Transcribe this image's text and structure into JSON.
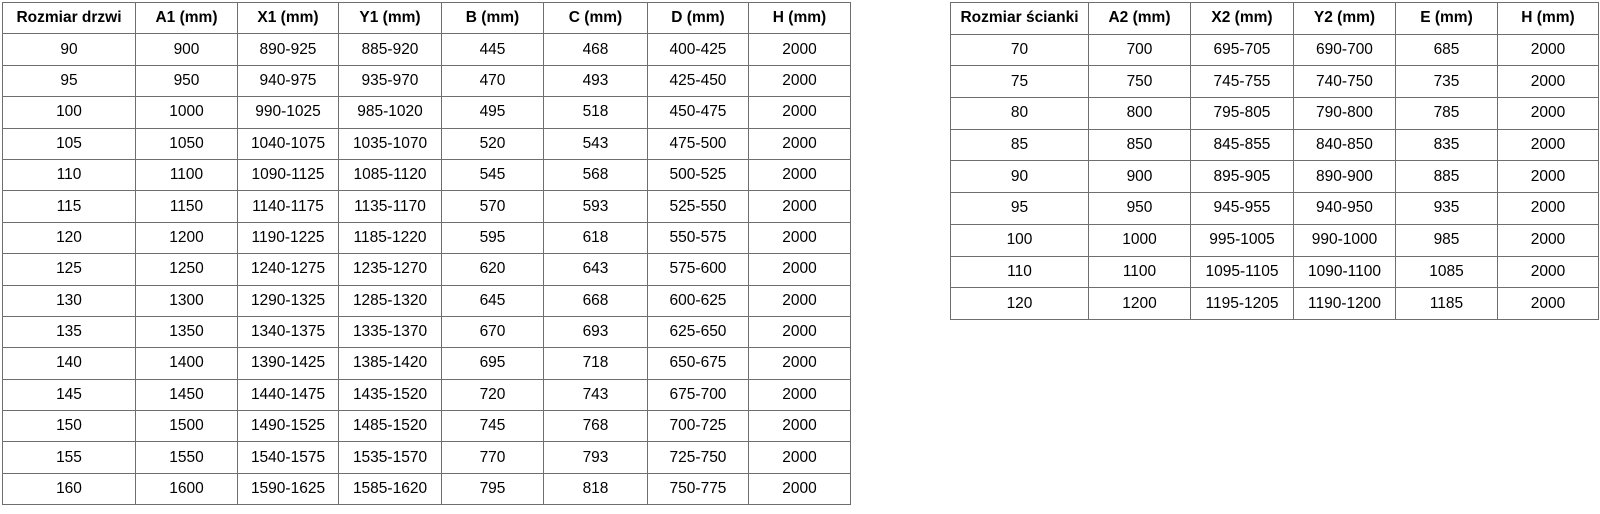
{
  "colors": {
    "border": "#6e6e6e",
    "text": "#000000",
    "background": "#ffffff"
  },
  "door_table": {
    "title": "Rozmiar drzwi",
    "headers": [
      "Rozmiar drzwi",
      "A1 (mm)",
      "X1 (mm)",
      "Y1 (mm)",
      "B (mm)",
      "C (mm)",
      "D (mm)",
      "H (mm)"
    ],
    "rows": [
      [
        "90",
        "900",
        "890-925",
        "885-920",
        "445",
        "468",
        "400-425",
        "2000"
      ],
      [
        "95",
        "950",
        "940-975",
        "935-970",
        "470",
        "493",
        "425-450",
        "2000"
      ],
      [
        "100",
        "1000",
        "990-1025",
        "985-1020",
        "495",
        "518",
        "450-475",
        "2000"
      ],
      [
        "105",
        "1050",
        "1040-1075",
        "1035-1070",
        "520",
        "543",
        "475-500",
        "2000"
      ],
      [
        "110",
        "1100",
        "1090-1125",
        "1085-1120",
        "545",
        "568",
        "500-525",
        "2000"
      ],
      [
        "115",
        "1150",
        "1140-1175",
        "1135-1170",
        "570",
        "593",
        "525-550",
        "2000"
      ],
      [
        "120",
        "1200",
        "1190-1225",
        "1185-1220",
        "595",
        "618",
        "550-575",
        "2000"
      ],
      [
        "125",
        "1250",
        "1240-1275",
        "1235-1270",
        "620",
        "643",
        "575-600",
        "2000"
      ],
      [
        "130",
        "1300",
        "1290-1325",
        "1285-1320",
        "645",
        "668",
        "600-625",
        "2000"
      ],
      [
        "135",
        "1350",
        "1340-1375",
        "1335-1370",
        "670",
        "693",
        "625-650",
        "2000"
      ],
      [
        "140",
        "1400",
        "1390-1425",
        "1385-1420",
        "695",
        "718",
        "650-675",
        "2000"
      ],
      [
        "145",
        "1450",
        "1440-1475",
        "1435-1520",
        "720",
        "743",
        "675-700",
        "2000"
      ],
      [
        "150",
        "1500",
        "1490-1525",
        "1485-1520",
        "745",
        "768",
        "700-725",
        "2000"
      ],
      [
        "155",
        "1550",
        "1540-1575",
        "1535-1570",
        "770",
        "793",
        "725-750",
        "2000"
      ],
      [
        "160",
        "1600",
        "1590-1625",
        "1585-1620",
        "795",
        "818",
        "750-775",
        "2000"
      ]
    ]
  },
  "wall_table": {
    "title": "Rozmiar ścianki",
    "headers": [
      "Rozmiar ścianki",
      "A2 (mm)",
      "X2 (mm)",
      "Y2 (mm)",
      "E (mm)",
      "H (mm)"
    ],
    "rows": [
      [
        "70",
        "700",
        "695-705",
        "690-700",
        "685",
        "2000"
      ],
      [
        "75",
        "750",
        "745-755",
        "740-750",
        "735",
        "2000"
      ],
      [
        "80",
        "800",
        "795-805",
        "790-800",
        "785",
        "2000"
      ],
      [
        "85",
        "850",
        "845-855",
        "840-850",
        "835",
        "2000"
      ],
      [
        "90",
        "900",
        "895-905",
        "890-900",
        "885",
        "2000"
      ],
      [
        "95",
        "950",
        "945-955",
        "940-950",
        "935",
        "2000"
      ],
      [
        "100",
        "1000",
        "995-1005",
        "990-1000",
        "985",
        "2000"
      ],
      [
        "110",
        "1100",
        "1095-1105",
        "1090-1100",
        "1085",
        "2000"
      ],
      [
        "120",
        "1200",
        "1195-1205",
        "1190-1200",
        "1185",
        "2000"
      ]
    ]
  }
}
